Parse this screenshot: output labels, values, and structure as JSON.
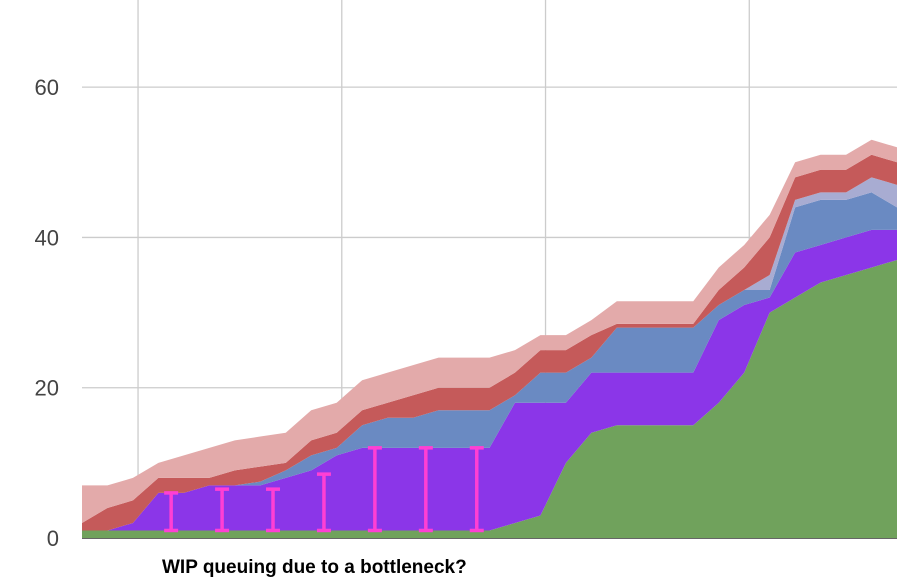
{
  "chart_data": {
    "type": "area",
    "stacked": true,
    "grid": true,
    "legend": "none",
    "x": [
      0,
      1,
      2,
      3,
      4,
      5,
      6,
      7,
      8,
      9,
      10,
      11,
      12,
      13,
      14,
      15,
      16,
      17,
      18,
      19,
      20,
      21,
      22,
      23,
      24,
      25,
      26,
      27,
      28,
      29,
      30,
      31,
      32
    ],
    "xlim": [
      0,
      32
    ],
    "ylim": [
      0,
      70
    ],
    "yticks": [
      0,
      20,
      40,
      60
    ],
    "yticks_labels": [
      "0",
      "20",
      "40",
      "60"
    ],
    "x_gridlines": [
      2.2,
      10.2,
      18.2,
      26.2
    ],
    "series": [
      {
        "color": "#70a25c",
        "values": [
          1,
          1,
          1,
          1,
          1,
          1,
          1,
          1,
          1,
          1,
          1,
          1,
          1,
          1,
          1,
          1,
          1,
          2,
          3,
          10,
          14,
          15,
          15,
          15,
          15,
          18,
          22,
          30,
          32,
          34,
          35,
          36,
          37
        ]
      },
      {
        "color": "#8b36e8",
        "values": [
          0,
          0,
          1,
          5,
          5,
          6,
          6,
          6,
          7,
          8,
          10,
          11,
          11,
          11,
          11,
          11,
          11,
          16,
          15,
          8,
          8,
          7,
          7,
          7,
          7,
          11,
          9,
          2,
          6,
          5,
          5,
          5,
          4
        ]
      },
      {
        "color": "#6a8ac2",
        "values": [
          0,
          0,
          0,
          0,
          0,
          0,
          0,
          0.5,
          1,
          2,
          1,
          3,
          4,
          4,
          5,
          5,
          5,
          1,
          4,
          4,
          2,
          6,
          6,
          6,
          6,
          2,
          2,
          1,
          6,
          6,
          5,
          5,
          3
        ]
      },
      {
        "color": "#a8acd2",
        "values": [
          0,
          0,
          0,
          0,
          0,
          0,
          0,
          0,
          0,
          0,
          0,
          0,
          0,
          0,
          0,
          0,
          0,
          0,
          0,
          0,
          0,
          0,
          0,
          0,
          0,
          0,
          0,
          2,
          1,
          1,
          1,
          2,
          3
        ]
      },
      {
        "color": "#c55a5a",
        "values": [
          1,
          3,
          3,
          2,
          2,
          1,
          2,
          2,
          1,
          2,
          2,
          2,
          2,
          3,
          3,
          3,
          3,
          3,
          3,
          3,
          3,
          0.5,
          0.5,
          0.5,
          0.5,
          2,
          3,
          5,
          3,
          3,
          3,
          3,
          3
        ]
      },
      {
        "color": "#e3aaaa",
        "values": [
          5,
          3,
          3,
          2,
          3,
          4,
          4,
          4,
          4,
          4,
          4,
          4,
          4,
          4,
          4,
          4,
          4,
          3,
          2,
          2,
          2,
          3,
          3,
          3,
          3,
          3,
          3,
          3,
          2,
          2,
          2,
          2,
          2
        ]
      }
    ],
    "markers": {
      "color": "#ff3fd4",
      "bars": [
        {
          "x": 3.5,
          "y0": 1,
          "y1": 6
        },
        {
          "x": 5.5,
          "y0": 1,
          "y1": 6.5
        },
        {
          "x": 7.5,
          "y0": 1,
          "y1": 6.5
        },
        {
          "x": 9.5,
          "y0": 1,
          "y1": 8.5
        },
        {
          "x": 11.5,
          "y0": 1,
          "y1": 12
        },
        {
          "x": 13.5,
          "y0": 1,
          "y1": 12
        },
        {
          "x": 15.5,
          "y0": 1,
          "y1": 12
        }
      ]
    },
    "annotation": "WIP queuing due to a bottleneck?"
  }
}
